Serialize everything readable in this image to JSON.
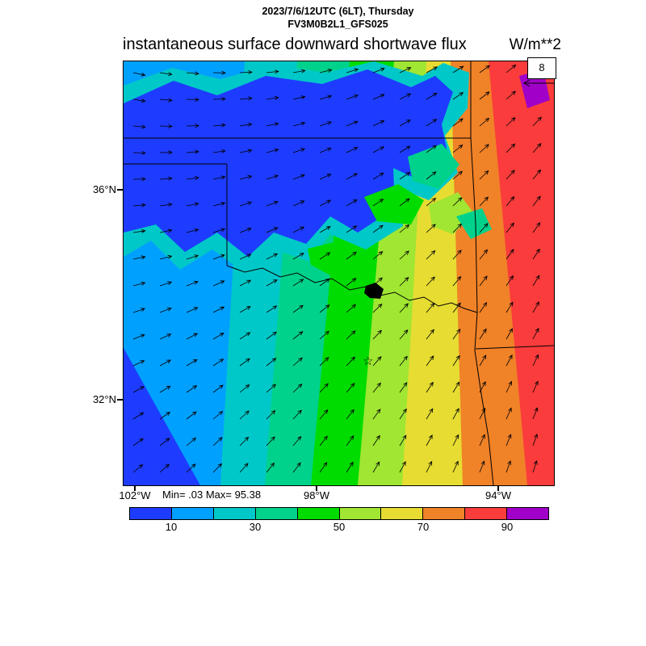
{
  "header": {
    "datetime_line": "2023/7/6/12UTC (6LT), Thursday",
    "model_line": "FV3M0B2L1_GFS025"
  },
  "title": {
    "text": "instantaneous surface downward shortwave flux",
    "units": "W/m**2"
  },
  "map": {
    "y_axis_labels": [
      "36°N",
      "32°N"
    ],
    "x_axis_labels": [
      "102°W",
      "98°W",
      "94°W"
    ],
    "min_max_label": "Min= .03 Max= 95.38",
    "wind_scale_value": "8"
  },
  "chart_data": {
    "type": "heatmap",
    "title": "instantaneous surface downward shortwave flux",
    "units": "W/m**2",
    "valid_time": "2023/7/6/12UTC (6LT), Thursday",
    "model_run": "FV3M0B2L1_GFS025",
    "value_min": 0.03,
    "value_max": 95.38,
    "wind_reference_vector": 8,
    "lat_ticks": [
      "36°N",
      "32°N"
    ],
    "lon_ticks": [
      "102°W",
      "98°W",
      "94°W"
    ],
    "region": "Texas / Oklahoma and surrounding states",
    "colorbar": {
      "levels": [
        10,
        20,
        30,
        40,
        50,
        60,
        70,
        80,
        90
      ],
      "tick_labels": [
        "10",
        "30",
        "50",
        "70",
        "90"
      ],
      "tick_positions": [
        1,
        3,
        5,
        7,
        9
      ],
      "colors": [
        "#1e3cff",
        "#00a0ff",
        "#00c8c8",
        "#00d28c",
        "#00dc00",
        "#a0e632",
        "#e6dc32",
        "#f08228",
        "#fa3c3c",
        "#a000c8"
      ]
    },
    "pattern_summary": "Early-morning flux: lowest values (blues, <10-30 W/m2) over the west and under a cloudy area across the north-central region; values increase eastward through greens and yellows to 80-95 W/m2 (reds, small >90 purple) along the eastern edge. Surface wind vectors point east-southeastward in the northwest, veering to northward/northeastward in the south and east."
  }
}
